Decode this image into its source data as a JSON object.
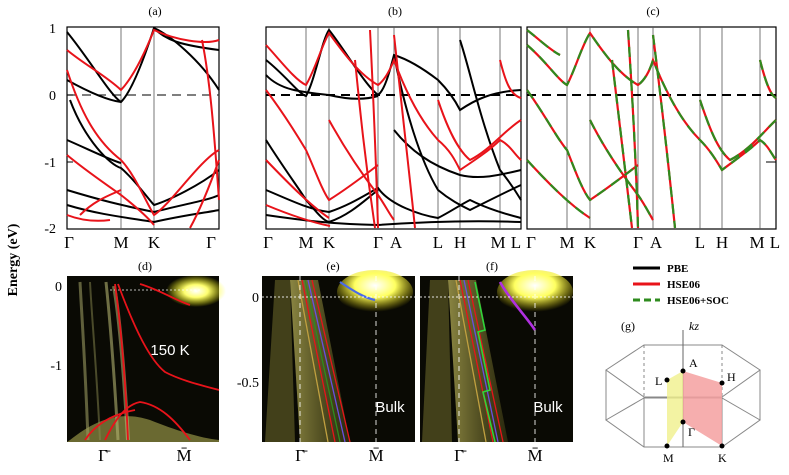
{
  "y_axis_label": "Energy (eV)",
  "colors": {
    "pbe": "#000000",
    "hse06": "#e8131a",
    "hse06_soc": "#2e8b1e",
    "zone_pink": "#f4a0a0",
    "zone_yellow": "#f0f08c"
  },
  "band_panels": [
    {
      "label": "(a)",
      "ticks": [
        "Γ",
        "M",
        "K",
        "Γ"
      ],
      "yticks": [
        "1",
        "0",
        "-1",
        "-2"
      ]
    },
    {
      "label": "(b)",
      "ticks": [
        "Γ",
        "M",
        "K",
        "Γ",
        "A",
        "L",
        "H",
        "M",
        "L"
      ]
    },
    {
      "label": "(c)",
      "ticks": [
        "Γ",
        "M",
        "K",
        "Γ",
        "A",
        "L",
        "H",
        "M",
        "L"
      ]
    }
  ],
  "arpes_panels": [
    {
      "label": "(d)",
      "yticks": [
        "0",
        "-1"
      ],
      "xticks": [
        "Γ̄",
        "M̄"
      ],
      "annotation": "150 K"
    },
    {
      "label": "(e)",
      "yticks": [
        "0",
        "-0.5"
      ],
      "xticks": [
        "Γ̄",
        "M̄"
      ],
      "annotation": "Bulk"
    },
    {
      "label": "(f)",
      "xticks": [
        "Γ̄",
        "M̄"
      ],
      "annotation": "Bulk"
    }
  ],
  "legend": {
    "items": [
      "PBE",
      "HSE06",
      "HSE06+SOC"
    ]
  },
  "brillouin": {
    "label": "(g)",
    "axis_label": "kz",
    "points": [
      "A",
      "L",
      "H",
      "Γ",
      "M",
      "K"
    ]
  },
  "chart_data": [
    {
      "type": "line",
      "panel": "(a)",
      "ylabel": "Energy (eV)",
      "ylim": [
        -2,
        1
      ],
      "x_ticks": [
        "Γ",
        "M",
        "K",
        "Γ"
      ],
      "fermi_level": 0,
      "series": [
        {
          "name": "PBE"
        },
        {
          "name": "HSE06"
        }
      ]
    },
    {
      "type": "line",
      "panel": "(b)",
      "ylim": [
        -2,
        1
      ],
      "x_ticks": [
        "Γ",
        "M",
        "K",
        "Γ",
        "A",
        "L",
        "H",
        "M",
        "L"
      ],
      "fermi_level": 0,
      "series": [
        {
          "name": "PBE"
        },
        {
          "name": "HSE06"
        }
      ]
    },
    {
      "type": "line",
      "panel": "(c)",
      "ylim": [
        -2,
        1
      ],
      "x_ticks": [
        "Γ",
        "M",
        "K",
        "Γ",
        "A",
        "L",
        "H",
        "M",
        "L"
      ],
      "fermi_level": 0,
      "series": [
        {
          "name": "HSE06"
        },
        {
          "name": "HSE06+SOC"
        }
      ]
    },
    {
      "type": "heatmap",
      "panel": "(d)",
      "ylim": [
        -1.8,
        0.1
      ],
      "x_ticks": [
        "Γ̄",
        "M̄"
      ]
    },
    {
      "type": "heatmap",
      "panel": "(e)",
      "ylim": [
        -0.8,
        0.05
      ],
      "x_ticks": [
        "Γ̄",
        "M̄"
      ]
    },
    {
      "type": "heatmap",
      "panel": "(f)",
      "ylim": [
        -0.8,
        0.05
      ],
      "x_ticks": [
        "Γ̄",
        "M̄"
      ]
    }
  ]
}
